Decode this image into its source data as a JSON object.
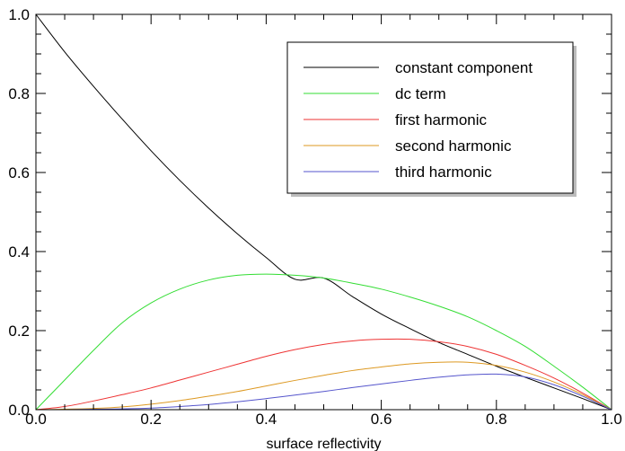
{
  "chart_data": {
    "type": "line",
    "title": "",
    "xlabel": "surface reflectivity",
    "ylabel": "",
    "xlim": [
      0.0,
      1.0
    ],
    "ylim": [
      0.0,
      1.0
    ],
    "grid": false,
    "legend_position": "top-right",
    "x_ticks": [
      "0.0",
      "0.2",
      "0.4",
      "0.6",
      "0.8",
      "1.0"
    ],
    "y_ticks": [
      "0.0",
      "0.2",
      "0.4",
      "0.6",
      "0.8",
      "1.0"
    ],
    "x": [
      0.0,
      0.05,
      0.1,
      0.15,
      0.2,
      0.25,
      0.3,
      0.35,
      0.4,
      0.45,
      0.5,
      0.55,
      0.6,
      0.65,
      0.7,
      0.75,
      0.8,
      0.85,
      0.9,
      0.95,
      1.0
    ],
    "series": [
      {
        "name": "constant component",
        "color": "#000000",
        "values": [
          1.0,
          0.905,
          0.818,
          0.735,
          0.655,
          0.58,
          0.51,
          0.445,
          0.385,
          0.33,
          0.333,
          0.286,
          0.242,
          0.205,
          0.17,
          0.14,
          0.11,
          0.082,
          0.055,
          0.028,
          0.0
        ]
      },
      {
        "name": "dc term",
        "color": "#33dd33",
        "values": [
          0.0,
          0.075,
          0.15,
          0.22,
          0.27,
          0.305,
          0.328,
          0.34,
          0.343,
          0.34,
          0.333,
          0.32,
          0.305,
          0.285,
          0.262,
          0.235,
          0.2,
          0.16,
          0.11,
          0.057,
          0.0
        ]
      },
      {
        "name": "first harmonic",
        "color": "#ee3333",
        "values": [
          0.0,
          0.008,
          0.022,
          0.038,
          0.055,
          0.075,
          0.095,
          0.115,
          0.135,
          0.152,
          0.165,
          0.174,
          0.178,
          0.178,
          0.172,
          0.16,
          0.14,
          0.112,
          0.08,
          0.042,
          0.0
        ]
      },
      {
        "name": "second harmonic",
        "color": "#dd9922",
        "values": [
          0.0,
          0.001,
          0.003,
          0.007,
          0.014,
          0.023,
          0.034,
          0.046,
          0.06,
          0.074,
          0.087,
          0.099,
          0.108,
          0.116,
          0.12,
          0.12,
          0.112,
          0.095,
          0.07,
          0.038,
          0.0
        ]
      },
      {
        "name": "third harmonic",
        "color": "#5555cc",
        "values": [
          0.0,
          0.0,
          0.001,
          0.002,
          0.004,
          0.008,
          0.013,
          0.02,
          0.028,
          0.037,
          0.046,
          0.056,
          0.065,
          0.074,
          0.082,
          0.088,
          0.09,
          0.083,
          0.063,
          0.034,
          0.0
        ]
      }
    ]
  }
}
